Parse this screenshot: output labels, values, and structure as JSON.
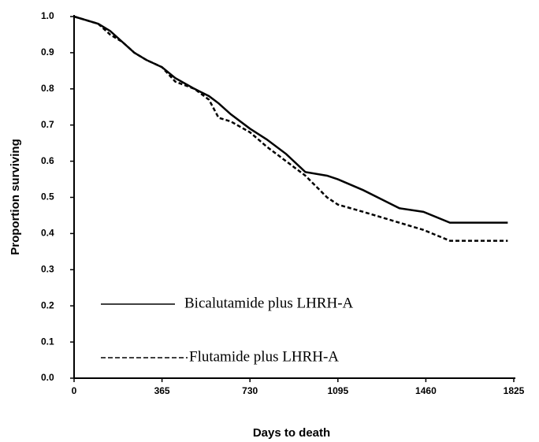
{
  "chart_data": {
    "type": "line",
    "xlabel": "Days to death",
    "ylabel": "Proportion surviving",
    "x": [
      0,
      50,
      100,
      150,
      200,
      250,
      300,
      365,
      420,
      500,
      560,
      600,
      650,
      730,
      800,
      880,
      960,
      1050,
      1095,
      1200,
      1350,
      1450,
      1560,
      1800
    ],
    "series": [
      {
        "name": "Bicalutamide plus LHRH-A",
        "color": "#000000",
        "dash": false,
        "values": [
          1.0,
          0.99,
          0.98,
          0.96,
          0.93,
          0.9,
          0.88,
          0.86,
          0.83,
          0.8,
          0.78,
          0.76,
          0.73,
          0.69,
          0.66,
          0.62,
          0.57,
          0.56,
          0.55,
          0.52,
          0.47,
          0.46,
          0.43,
          0.43
        ]
      },
      {
        "name": "Flutamide plus LHRH-A",
        "color": "#000000",
        "dash": true,
        "values": [
          1.0,
          0.99,
          0.98,
          0.95,
          0.93,
          0.9,
          0.88,
          0.86,
          0.82,
          0.8,
          0.77,
          0.72,
          0.71,
          0.68,
          0.64,
          0.6,
          0.56,
          0.5,
          0.48,
          0.46,
          0.43,
          0.41,
          0.38,
          0.38
        ]
      }
    ],
    "xlim": [
      0,
      1825
    ],
    "xticks": [
      0,
      365,
      730,
      1095,
      1460,
      1825
    ],
    "ylim": [
      0,
      1
    ],
    "yticks": [
      {
        "value": 0,
        "label": "0.0"
      },
      0.1,
      0.2,
      0.3,
      0.4,
      0.5,
      0.6,
      0.7,
      0.8,
      0.9,
      {
        "value": 1,
        "label": "1.0"
      }
    ],
    "grid": false
  }
}
